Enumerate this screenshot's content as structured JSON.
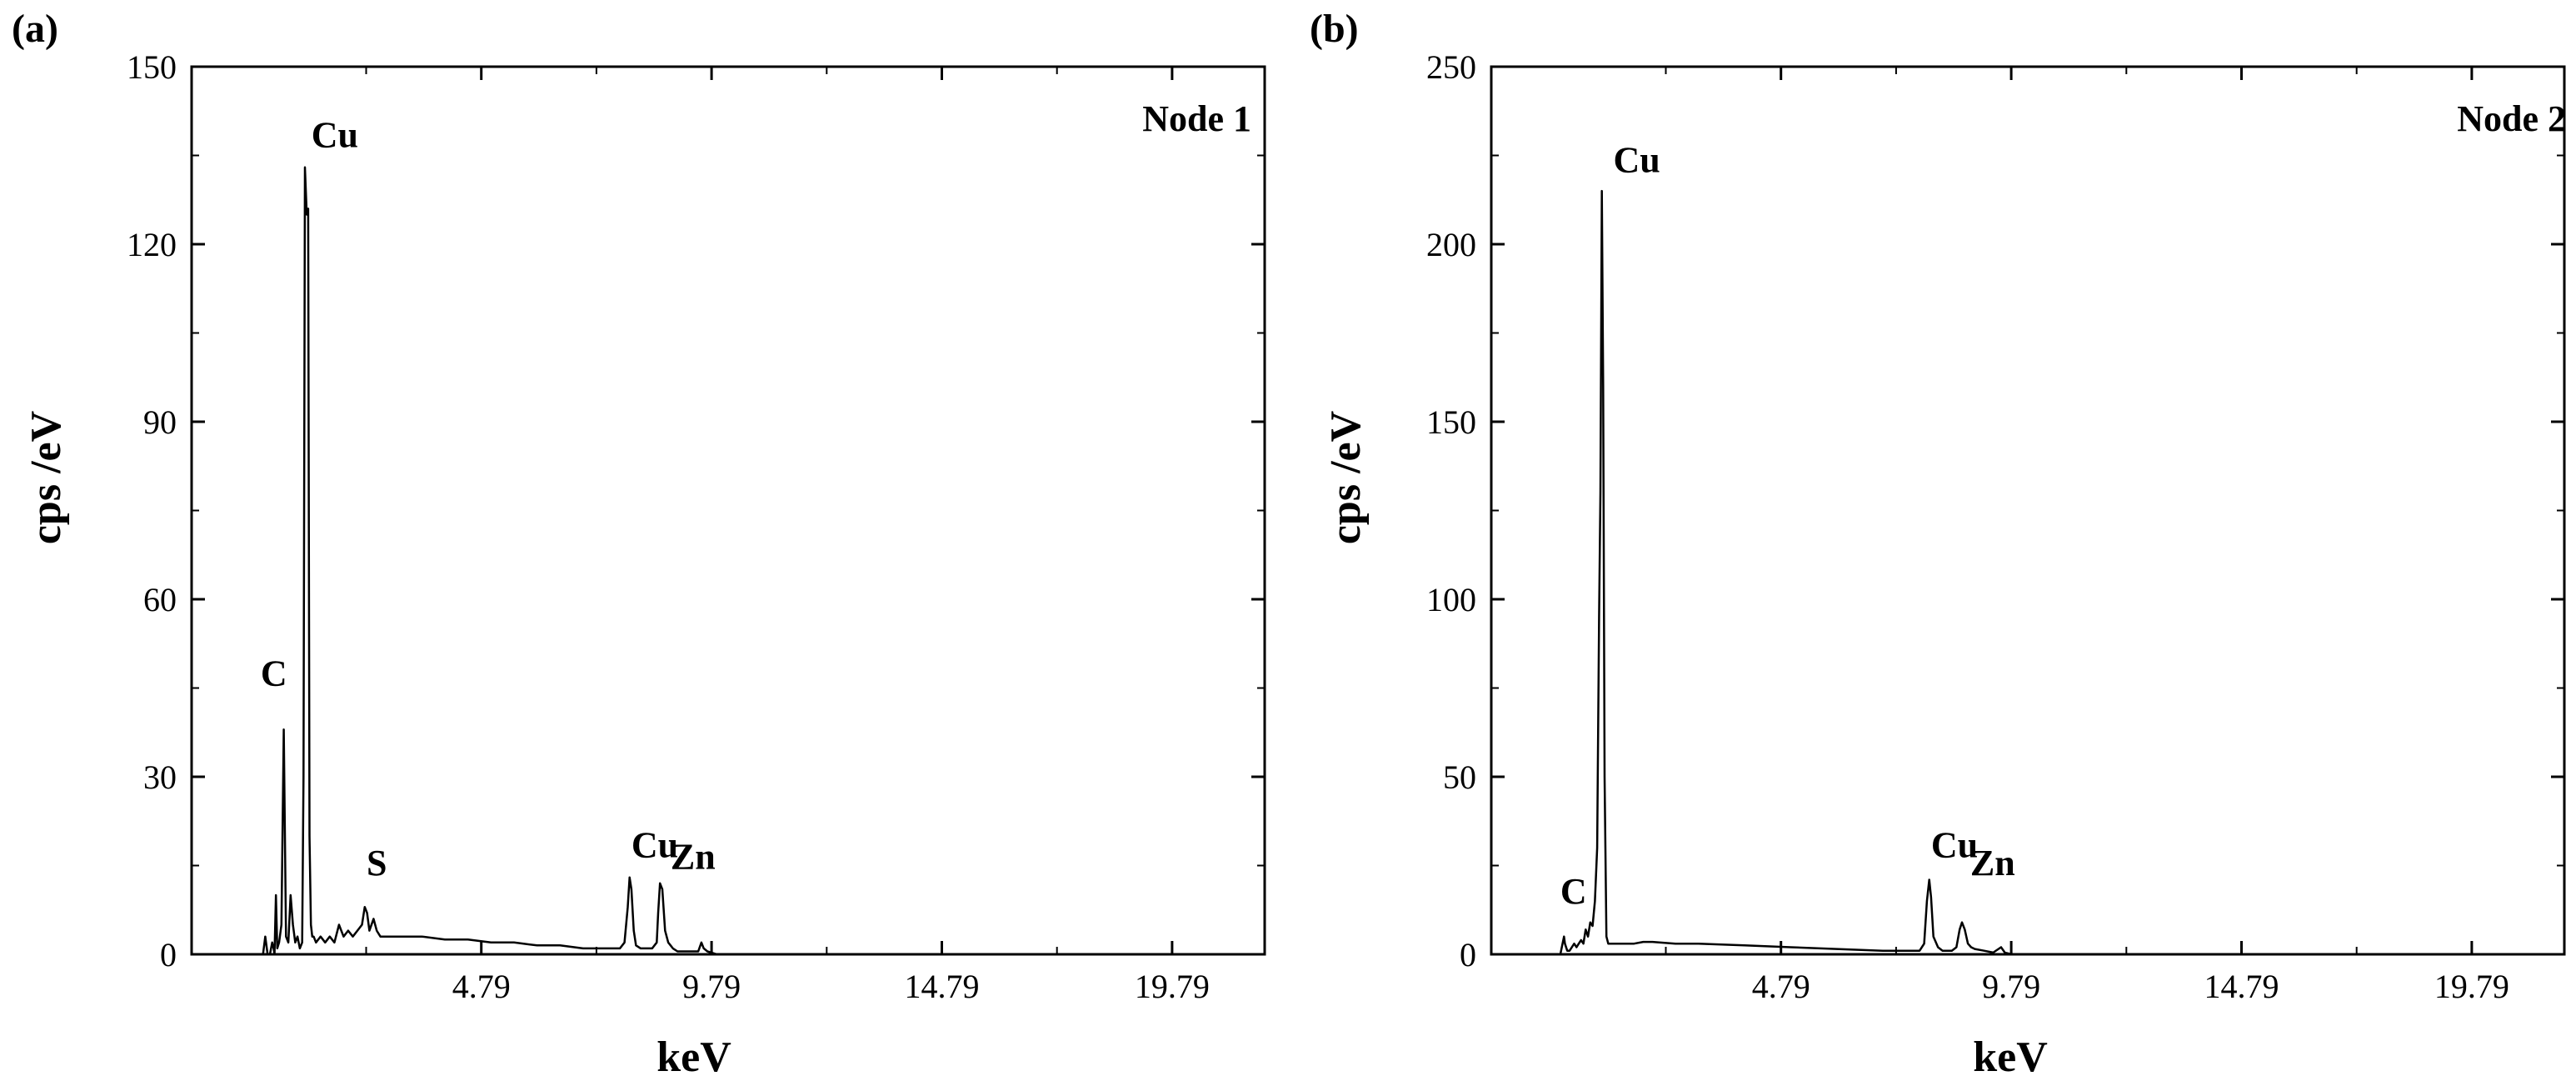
{
  "chart_data": [
    {
      "type": "line",
      "panel_label": "(a)",
      "inset_label": "Node 1",
      "xlabel": "keV",
      "ylabel": "cps /eV",
      "xlim": [
        -1.5,
        21.8
      ],
      "ylim": [
        0,
        150
      ],
      "x_ticks": [
        4.79,
        9.79,
        14.79,
        19.79
      ],
      "x_tick_labels": [
        "4.79",
        "9.79",
        "14.79",
        "19.79"
      ],
      "y_ticks": [
        0,
        30,
        60,
        90,
        120,
        150
      ],
      "y_tick_labels": [
        "0",
        "30",
        "60",
        "90",
        "120",
        "150"
      ],
      "grid": false,
      "peak_labels": [
        {
          "text": "C",
          "x": 0.0,
          "y": 44
        },
        {
          "text": "Cu",
          "x": 1.1,
          "y": 135
        },
        {
          "text": "S",
          "x": 2.3,
          "y": 12
        },
        {
          "text": "Cu",
          "x": 8.05,
          "y": 15
        },
        {
          "text": "Zn",
          "x": 8.9,
          "y": 13
        }
      ],
      "series": [
        {
          "x": [
            0,
            0.05,
            0.1,
            0.15,
            0.2,
            0.25,
            0.28,
            0.3,
            0.33,
            0.36,
            0.4,
            0.45,
            0.5,
            0.55,
            0.6,
            0.65,
            0.7,
            0.75,
            0.8,
            0.85,
            0.9,
            0.93,
            0.96,
            1.0,
            1.03,
            1.06,
            1.09,
            1.12,
            1.15,
            1.2,
            1.3,
            1.4,
            1.5,
            1.6,
            1.7,
            1.8,
            1.9,
            2.0,
            2.1,
            2.2,
            2.26,
            2.31,
            2.36,
            2.45,
            2.52,
            2.6,
            2.7,
            2.9,
            3.2,
            3.5,
            4.0,
            4.5,
            5.0,
            5.5,
            6.0,
            6.5,
            7.0,
            7.5,
            7.8,
            7.9,
            7.97,
            8.01,
            8.05,
            8.1,
            8.15,
            8.25,
            8.4,
            8.5,
            8.6,
            8.63,
            8.67,
            8.72,
            8.78,
            8.85,
            8.9,
            8.95,
            9.05,
            9.2,
            9.3,
            9.5,
            9.57,
            9.62,
            9.7,
            9.9,
            10.3,
            10.8,
            11.5,
            12.5,
            14.0,
            16.0,
            18.0,
            20.0
          ],
          "y": [
            0,
            0,
            3,
            0,
            0,
            2,
            1,
            0,
            10,
            1,
            2,
            5,
            38,
            3,
            2,
            10,
            5,
            2,
            3,
            1,
            2,
            30,
            133,
            125,
            126,
            20,
            5,
            3,
            3,
            2,
            3,
            2,
            3,
            2,
            5,
            3,
            4,
            3,
            4,
            5,
            8,
            7,
            4,
            6,
            4,
            3,
            3,
            3,
            3,
            3,
            2.5,
            2.5,
            2,
            2,
            1.5,
            1.5,
            1,
            1,
            1,
            2,
            8,
            13,
            11,
            4,
            1.5,
            1,
            1,
            1,
            2,
            7,
            12,
            11,
            4,
            2,
            1.5,
            1,
            0.5,
            0.5,
            0.5,
            0.5,
            2,
            1,
            0.5,
            0,
            0,
            0,
            0,
            0,
            0,
            0,
            0,
            0
          ]
        }
      ]
    },
    {
      "type": "line",
      "panel_label": "(b)",
      "inset_label": "Node 2",
      "xlabel": "keV",
      "ylabel": "cps /eV",
      "xlim": [
        -1.5,
        21.8
      ],
      "ylim": [
        0,
        250
      ],
      "x_ticks": [
        4.79,
        9.79,
        14.79,
        19.79
      ],
      "x_tick_labels": [
        "4.79",
        "9.79",
        "14.79",
        "19.79"
      ],
      "y_ticks": [
        0,
        50,
        100,
        150,
        200,
        250
      ],
      "y_tick_labels": [
        "0",
        "50",
        "100",
        "150",
        "200",
        "250"
      ],
      "grid": false,
      "peak_labels": [
        {
          "text": "C",
          "x": 0.0,
          "y": 12
        },
        {
          "text": "Cu",
          "x": 1.15,
          "y": 218
        },
        {
          "text": "Cu",
          "x": 8.05,
          "y": 25
        },
        {
          "text": "Zn",
          "x": 8.9,
          "y": 20
        }
      ],
      "series": [
        {
          "x": [
            0,
            0.08,
            0.1,
            0.15,
            0.2,
            0.25,
            0.3,
            0.35,
            0.4,
            0.45,
            0.5,
            0.55,
            0.6,
            0.65,
            0.7,
            0.75,
            0.8,
            0.84,
            0.87,
            0.9,
            0.93,
            0.96,
            1.0,
            1.04,
            1.1,
            1.2,
            1.4,
            1.6,
            1.8,
            2.0,
            2.5,
            3.0,
            4.0,
            5.0,
            6.0,
            7.0,
            7.5,
            7.8,
            7.9,
            7.96,
            8.01,
            8.05,
            8.1,
            8.2,
            8.3,
            8.5,
            8.6,
            8.67,
            8.72,
            8.78,
            8.85,
            8.92,
            9.0,
            9.2,
            9.4,
            9.57,
            9.65,
            9.8,
            10.2,
            11.0,
            12.5,
            14.0,
            16.0,
            18.0,
            20.0
          ],
          "y": [
            0,
            5,
            3,
            1,
            1,
            2,
            3,
            2,
            3,
            4,
            3,
            7,
            5,
            9,
            8,
            15,
            30,
            95,
            130,
            215,
            160,
            50,
            5,
            3,
            3,
            3,
            3,
            3,
            3.5,
            3.5,
            3,
            3,
            2.5,
            2,
            1.5,
            1,
            1,
            1,
            3,
            15,
            21,
            16,
            5,
            2,
            1,
            1,
            2,
            7,
            9,
            7,
            3,
            2,
            1.5,
            1,
            0.5,
            2,
            0.5,
            0,
            0,
            0,
            0,
            0,
            0,
            0,
            0
          ]
        }
      ]
    }
  ]
}
